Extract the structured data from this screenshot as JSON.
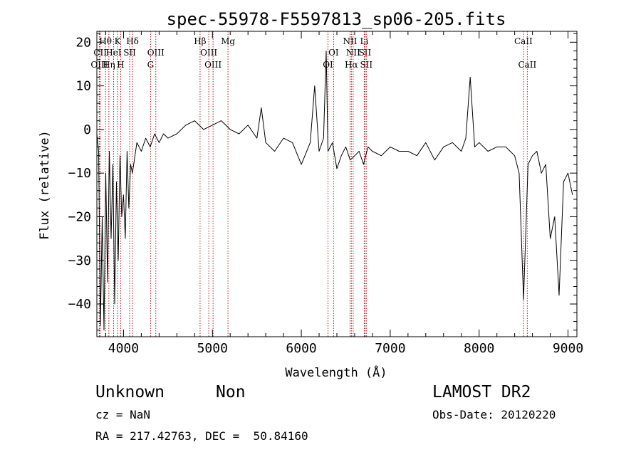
{
  "chart_data": {
    "type": "line",
    "title": "spec-55978-F5597813_sp06-205.fits",
    "xlabel": "Wavelength (Å)",
    "ylabel": "Flux (relative)",
    "xlim": [
      3700,
      9100
    ],
    "ylim": [
      -47.5,
      22.5
    ],
    "xticks": [
      4000,
      5000,
      6000,
      7000,
      8000,
      9000
    ],
    "yticks": [
      -40,
      -30,
      -20,
      -10,
      0,
      10,
      20
    ],
    "x": [
      3700,
      3720,
      3740,
      3760,
      3780,
      3800,
      3820,
      3840,
      3860,
      3880,
      3900,
      3920,
      3940,
      3960,
      3980,
      4000,
      4020,
      4040,
      4060,
      4080,
      4100,
      4150,
      4200,
      4250,
      4300,
      4350,
      4400,
      4450,
      4500,
      4600,
      4700,
      4800,
      4900,
      5000,
      5100,
      5200,
      5300,
      5400,
      5500,
      5550,
      5600,
      5700,
      5800,
      5900,
      6000,
      6100,
      6150,
      6200,
      6250,
      6280,
      6300,
      6350,
      6400,
      6450,
      6500,
      6550,
      6600,
      6650,
      6700,
      6750,
      6800,
      6900,
      7000,
      7100,
      7200,
      7300,
      7400,
      7500,
      7600,
      7700,
      7800,
      7850,
      7900,
      7950,
      8000,
      8100,
      8200,
      8300,
      8400,
      8450,
      8500,
      8550,
      8600,
      8650,
      8700,
      8750,
      8800,
      8850,
      8900,
      8950,
      9000,
      9050
    ],
    "y": [
      -1,
      -5,
      -45,
      -20,
      -46,
      -10,
      -35,
      -5,
      -25,
      -8,
      -40,
      -12,
      -30,
      -6,
      -20,
      -15,
      -25,
      -5,
      -18,
      -8,
      -10,
      -3,
      -5,
      -2,
      -4,
      -1,
      -3,
      -1,
      -2,
      -1,
      1,
      2,
      0,
      1,
      2,
      0,
      -1,
      1,
      -2,
      5,
      -3,
      -5,
      -2,
      -3,
      -8,
      -3,
      10,
      -5,
      -2,
      18,
      -5,
      -3,
      -9,
      -6,
      -4,
      -7,
      -6,
      -5,
      -8,
      -4,
      -5,
      -6,
      -4,
      -5,
      -5,
      -6,
      -3,
      -7,
      -4,
      -3,
      -5,
      -2,
      12,
      -4,
      -3,
      -5,
      -4,
      -4,
      -6,
      -10,
      -39,
      -8,
      -6,
      -5,
      -10,
      -8,
      -25,
      -20,
      -38,
      -12,
      -10,
      -15
    ],
    "lines": [
      {
        "label": "Hθ",
        "x": 3797,
        "row": 1
      },
      {
        "label": "OIII",
        "x": 3727,
        "row": 3
      },
      {
        "label": "CII",
        "x": 3737,
        "row": 2
      },
      {
        "label": "HeI",
        "x": 3888,
        "row": 2
      },
      {
        "label": "Hη",
        "x": 3835,
        "row": 3
      },
      {
        "label": "K",
        "x": 3933,
        "row": 1
      },
      {
        "label": "H",
        "x": 3968,
        "row": 3
      },
      {
        "label": "SII",
        "x": 4069,
        "row": 2
      },
      {
        "label": "Hδ",
        "x": 4101,
        "row": 1
      },
      {
        "label": "OIII",
        "x": 4363,
        "row": 2
      },
      {
        "label": "G",
        "x": 4304,
        "row": 3
      },
      {
        "label": "Hβ",
        "x": 4861,
        "row": 1
      },
      {
        "label": "OIII",
        "x": 4959,
        "row": 2
      },
      {
        "label": "OIII",
        "x": 5007,
        "row": 3
      },
      {
        "label": "Mg",
        "x": 5175,
        "row": 1
      },
      {
        "label": "OI",
        "x": 6363,
        "row": 2
      },
      {
        "label": "OI",
        "x": 6300,
        "row": 3
      },
      {
        "label": "NII",
        "x": 6548,
        "row": 1
      },
      {
        "label": "NII",
        "x": 6583,
        "row": 2
      },
      {
        "label": "Hα",
        "x": 6563,
        "row": 3
      },
      {
        "label": "Li",
        "x": 6708,
        "row": 1
      },
      {
        "label": "SII",
        "x": 6716,
        "row": 2
      },
      {
        "label": "SII",
        "x": 6731,
        "row": 3
      },
      {
        "label": "CaII",
        "x": 8498,
        "row": 1
      },
      {
        "label": "CaII",
        "x": 8542,
        "row": 3
      }
    ]
  },
  "info": {
    "object_class": "Unknown",
    "subclass": "Non",
    "survey": "LAMOST DR2",
    "cz": "cz = NaN",
    "obs_date": "Obs-Date: 20120220",
    "coords": "RA = 217.42763, DEC =  50.84160"
  }
}
